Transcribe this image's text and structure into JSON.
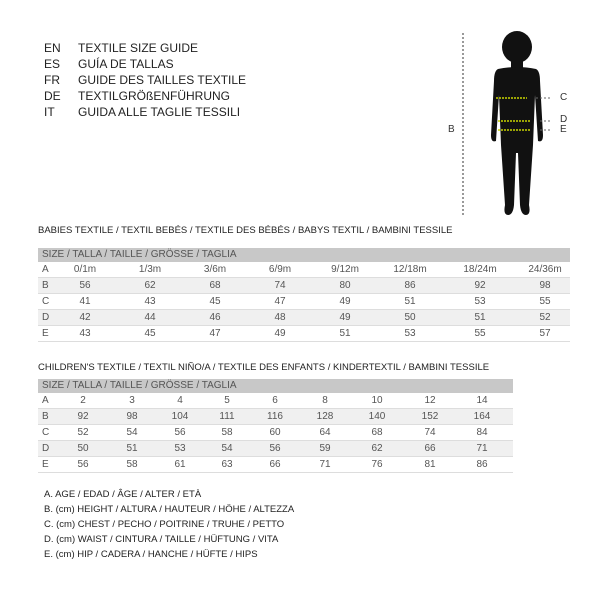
{
  "languages": [
    {
      "code": "EN",
      "title": "TEXTILE SIZE GUIDE"
    },
    {
      "code": "ES",
      "title": "GUÍA DE TALLAS"
    },
    {
      "code": "FR",
      "title": "GUIDE DES TAILLES TEXTILE"
    },
    {
      "code": "DE",
      "title": "TEXTILGRÖßENFÜHRUNG"
    },
    {
      "code": "IT",
      "title": "GUIDA ALLE TAGLIE TESSILI"
    }
  ],
  "figure": {
    "labels": {
      "B": "B",
      "C": "C",
      "D": "D",
      "E": "E"
    },
    "measure_line_color": "#c8d400"
  },
  "babies": {
    "title": "BABIES TEXTILE / TEXTIL BEBÉS / TEXTILE DES BÉBÉS / BABYS TEXTIL  / BAMBINI TESSILE",
    "header": "SIZE / TALLA / TAILLE / GRÖSSE / TAGLIA",
    "rows": [
      {
        "label": "A",
        "values": [
          "0/1m",
          "1/3m",
          "3/6m",
          "6/9m",
          "9/12m",
          "12/18m",
          "18/24m",
          "24/36m"
        ]
      },
      {
        "label": "B",
        "values": [
          "56",
          "62",
          "68",
          "74",
          "80",
          "86",
          "92",
          "98"
        ]
      },
      {
        "label": "C",
        "values": [
          "41",
          "43",
          "45",
          "47",
          "49",
          "51",
          "53",
          "55"
        ]
      },
      {
        "label": "D",
        "values": [
          "42",
          "44",
          "46",
          "48",
          "49",
          "50",
          "51",
          "52"
        ]
      },
      {
        "label": "E",
        "values": [
          "43",
          "45",
          "47",
          "49",
          "51",
          "53",
          "55",
          "57"
        ]
      }
    ]
  },
  "children": {
    "title": "CHILDREN'S TEXTILE / TEXTIL NIÑO/A / TEXTILE DES ENFANTS / KINDERTEXTIL / BAMBINI TESSILE",
    "header": "SIZE / TALLA / TAILLE / GRÖSSE / TAGLIA",
    "rows": [
      {
        "label": "A",
        "values": [
          "2",
          "3",
          "4",
          "5",
          "6",
          "8",
          "10",
          "12",
          "14"
        ]
      },
      {
        "label": "B",
        "values": [
          "92",
          "98",
          "104",
          "111",
          "116",
          "128",
          "140",
          "152",
          "164"
        ]
      },
      {
        "label": "C",
        "values": [
          "52",
          "54",
          "56",
          "58",
          "60",
          "64",
          "68",
          "74",
          "84"
        ]
      },
      {
        "label": "D",
        "values": [
          "50",
          "51",
          "53",
          "54",
          "56",
          "59",
          "62",
          "66",
          "71"
        ]
      },
      {
        "label": "E",
        "values": [
          "56",
          "58",
          "61",
          "63",
          "66",
          "71",
          "76",
          "81",
          "86"
        ]
      }
    ]
  },
  "legend": [
    "A. AGE / EDAD / ÂGE / ALTER / ETÀ",
    "B. (cm) HEIGHT / ALTURA / HAUTEUR / HÖHE / ALTEZZA",
    "C. (cm) CHEST / PECHO / POITRINE / TRUHE / PETTO",
    "D. (cm) WAIST / CINTURA / TAILLE / HÜFTUNG / VITA",
    "E. (cm) HIP / CADERA / HANCHE / HÜFTE / HIPS"
  ]
}
